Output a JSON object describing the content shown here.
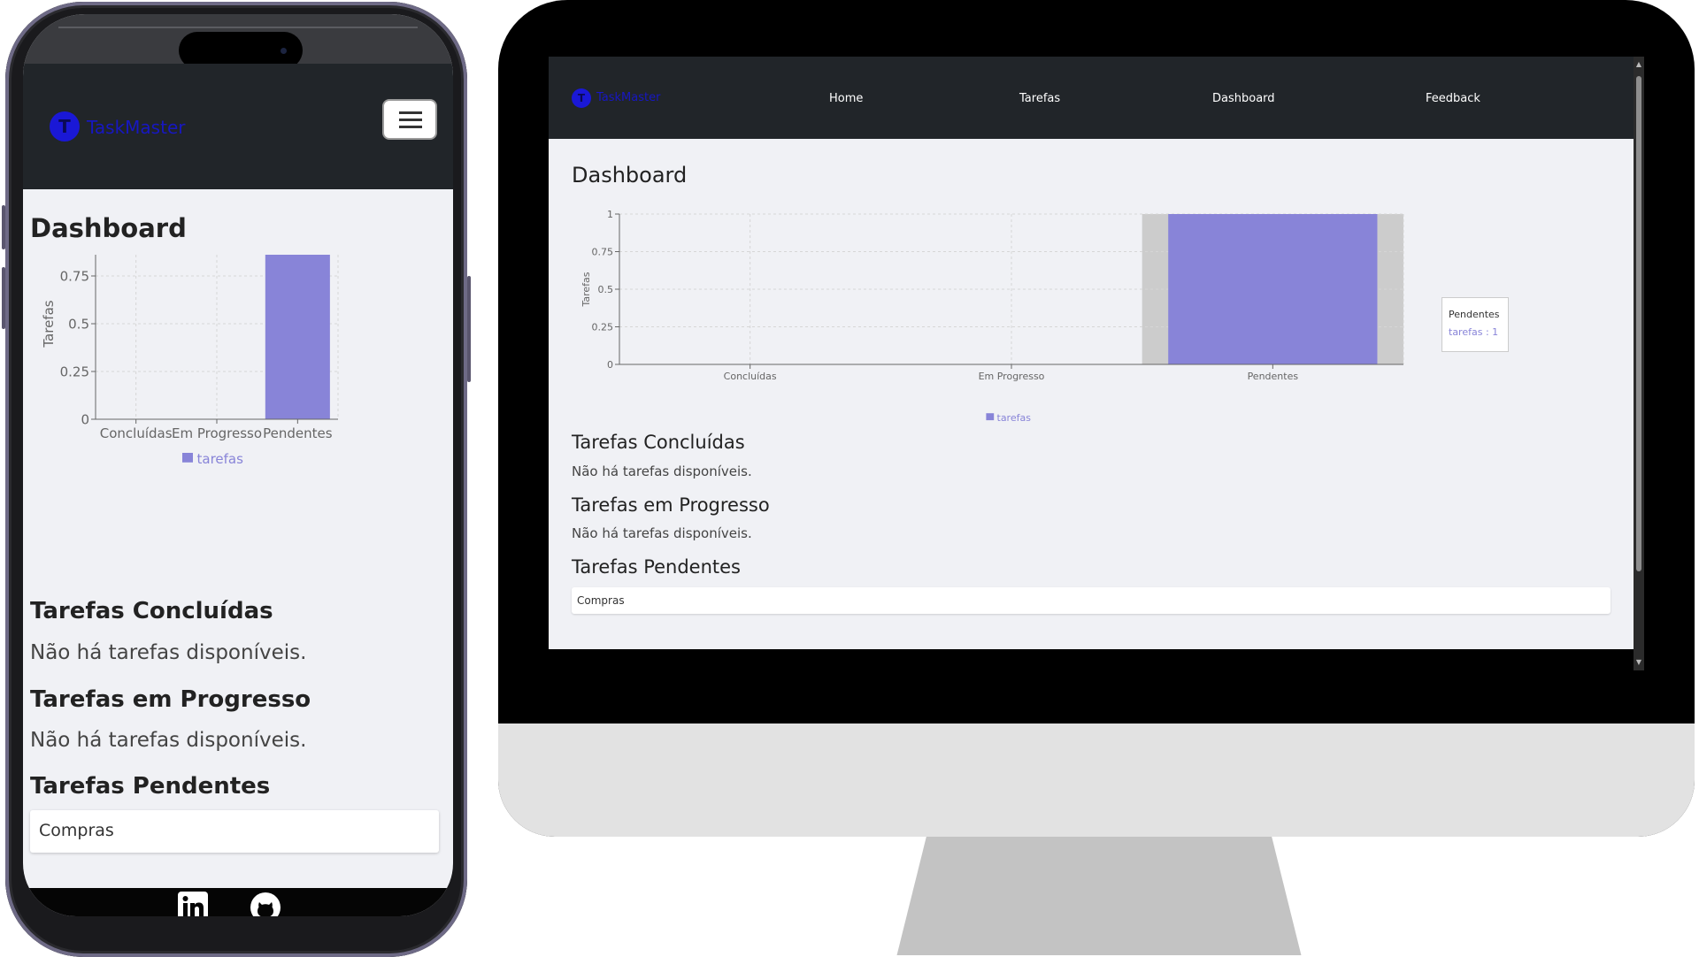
{
  "app": {
    "brand": "TaskMaster",
    "logo_letter": "T"
  },
  "nav": {
    "items": [
      "Home",
      "Tarefas",
      "Dashboard",
      "Feedback"
    ]
  },
  "dashboard": {
    "title": "Dashboard",
    "sections": [
      {
        "heading": "Tarefas Concluídas",
        "empty_text": "Não há tarefas disponíveis."
      },
      {
        "heading": "Tarefas em Progresso",
        "empty_text": "Não há tarefas disponíveis."
      },
      {
        "heading": "Tarefas Pendentes",
        "items": [
          "Compras"
        ]
      }
    ]
  },
  "tooltip": {
    "title": "Pendentes",
    "text": "tarefas : 1"
  },
  "colors": {
    "bar": "#8884d8",
    "nav_bg": "#212529",
    "page_bg": "#f0f1f5",
    "brand": "#1717c2"
  },
  "icons": {
    "menu": "hamburger-icon",
    "footer": [
      "linkedin-icon",
      "github-icon"
    ]
  },
  "chart_data": {
    "type": "bar",
    "categories": [
      "Concluídas",
      "Em Progresso",
      "Pendentes"
    ],
    "series": [
      {
        "name": "tarefas",
        "values": [
          0,
          0,
          1
        ]
      }
    ],
    "ylabel": "Tarefas",
    "ylim": [
      0,
      1
    ],
    "yticks": [
      "0",
      "0.25",
      "0.5",
      "0.75",
      "1"
    ],
    "grid": true,
    "legend": "bottom"
  }
}
